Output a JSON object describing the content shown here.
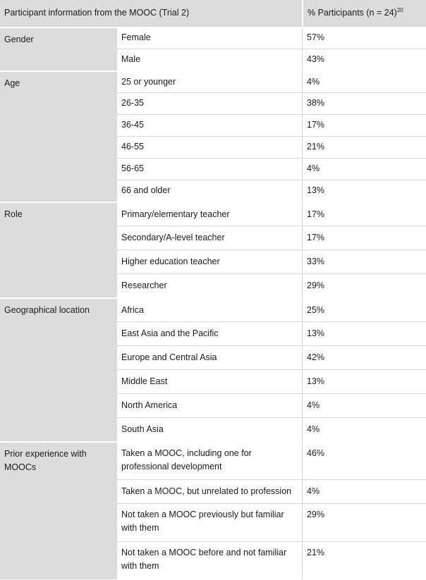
{
  "header": {
    "col1": "Participant information from the MOOC (Trial 2)",
    "col3_main": "% Participants (n = 24)",
    "col3_sup": "20"
  },
  "groups": [
    {
      "label": "Gender",
      "rows": [
        {
          "item": "Female",
          "value": "57%"
        },
        {
          "item": "Male",
          "value": "43%"
        }
      ]
    },
    {
      "label": "Age",
      "rows": [
        {
          "item": "25 or younger",
          "value": "4%"
        },
        {
          "item": "26-35",
          "value": "38%"
        },
        {
          "item": "36-45",
          "value": "17%"
        },
        {
          "item": "46-55",
          "value": "21%"
        },
        {
          "item": "56-65",
          "value": "4%"
        },
        {
          "item": "66 and older",
          "value": "13%"
        }
      ]
    },
    {
      "label": "Role",
      "rows": [
        {
          "item": "Primary/elementary teacher",
          "value": "17%"
        },
        {
          "item": "Secondary/A-level teacher",
          "value": "17%"
        },
        {
          "item": "Higher education teacher",
          "value": "33%"
        },
        {
          "item": "Researcher",
          "value": "29%"
        }
      ]
    },
    {
      "label": "Geographical location",
      "rows": [
        {
          "item": "Africa",
          "value": "25%"
        },
        {
          "item": "East Asia and the Pacific",
          "value": "13%"
        },
        {
          "item": "Europe and Central Asia",
          "value": "42%"
        },
        {
          "item": "Middle East",
          "value": "13%"
        },
        {
          "item": "North America",
          "value": "4%"
        },
        {
          "item": "South Asia",
          "value": "4%"
        }
      ]
    },
    {
      "label": "Prior experience with MOOCs",
      "rows": [
        {
          "item": "Taken a MOOC, including one for professional development",
          "value": "46%"
        },
        {
          "item": "Taken a MOOC, but unrelated to profession",
          "value": "4%"
        },
        {
          "item": "Not taken a MOOC previously but familiar with them",
          "value": "29%"
        },
        {
          "item": "Not taken a MOOC before and not familiar with them",
          "value": "21%"
        }
      ]
    }
  ]
}
